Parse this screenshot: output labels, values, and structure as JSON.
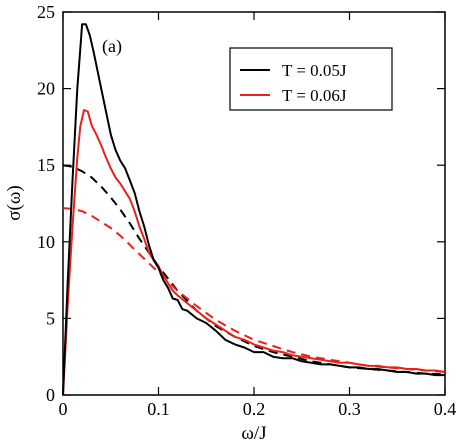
{
  "chart_data": {
    "type": "line",
    "annotation": "(a)",
    "xlabel": "ω/J",
    "ylabel": "σ(ω)",
    "xlim": [
      0,
      0.4
    ],
    "ylim": [
      0,
      25
    ],
    "x_ticks": [
      0,
      0.1,
      0.2,
      0.3,
      0.4
    ],
    "x_tick_labels": [
      "0",
      "0.1",
      "0.2",
      "0.3",
      "0.4"
    ],
    "y_ticks": [
      0,
      5,
      10,
      15,
      20,
      25
    ],
    "y_tick_labels": [
      "0",
      "5",
      "10",
      "15",
      "20",
      "25"
    ],
    "grid": false,
    "legend_position": "top-right",
    "series": [
      {
        "name": "T = 0.05J",
        "color": "#000000",
        "style": "solid",
        "points": [
          [
            0,
            0
          ],
          [
            0.005,
            7.5
          ],
          [
            0.01,
            14
          ],
          [
            0.015,
            20
          ],
          [
            0.018,
            22.5
          ],
          [
            0.02,
            24.2
          ],
          [
            0.024,
            24.2
          ],
          [
            0.028,
            23.5
          ],
          [
            0.032,
            22.4
          ],
          [
            0.036,
            21.2
          ],
          [
            0.04,
            20
          ],
          [
            0.045,
            18.5
          ],
          [
            0.05,
            17
          ],
          [
            0.055,
            16
          ],
          [
            0.06,
            15.3
          ],
          [
            0.065,
            14.8
          ],
          [
            0.07,
            14
          ],
          [
            0.075,
            13.2
          ],
          [
            0.08,
            12
          ],
          [
            0.085,
            11
          ],
          [
            0.09,
            9.8
          ],
          [
            0.095,
            8.8
          ],
          [
            0.1,
            8.3
          ],
          [
            0.105,
            7.5
          ],
          [
            0.11,
            7
          ],
          [
            0.115,
            6.3
          ],
          [
            0.12,
            6.2
          ],
          [
            0.125,
            5.6
          ],
          [
            0.13,
            5.5
          ],
          [
            0.14,
            5
          ],
          [
            0.15,
            4.7
          ],
          [
            0.16,
            4.2
          ],
          [
            0.17,
            3.6
          ],
          [
            0.18,
            3.3
          ],
          [
            0.19,
            3.1
          ],
          [
            0.2,
            2.8
          ],
          [
            0.21,
            2.8
          ],
          [
            0.22,
            2.5
          ],
          [
            0.23,
            2.4
          ],
          [
            0.24,
            2.4
          ],
          [
            0.25,
            2.2
          ],
          [
            0.26,
            2.1
          ],
          [
            0.27,
            2
          ],
          [
            0.28,
            2
          ],
          [
            0.29,
            1.9
          ],
          [
            0.3,
            1.8
          ],
          [
            0.31,
            1.8
          ],
          [
            0.32,
            1.7
          ],
          [
            0.33,
            1.7
          ],
          [
            0.34,
            1.6
          ],
          [
            0.35,
            1.5
          ],
          [
            0.36,
            1.5
          ],
          [
            0.37,
            1.4
          ],
          [
            0.38,
            1.4
          ],
          [
            0.39,
            1.3
          ],
          [
            0.4,
            1.3
          ]
        ]
      },
      {
        "name": "T = 0.06J",
        "color": "#e8211b",
        "style": "solid",
        "points": [
          [
            0,
            0
          ],
          [
            0.005,
            6
          ],
          [
            0.01,
            11
          ],
          [
            0.015,
            15.5
          ],
          [
            0.018,
            17.5
          ],
          [
            0.022,
            18.6
          ],
          [
            0.026,
            18.5
          ],
          [
            0.03,
            17.6
          ],
          [
            0.035,
            17
          ],
          [
            0.04,
            16.3
          ],
          [
            0.045,
            15.5
          ],
          [
            0.05,
            14.8
          ],
          [
            0.055,
            14.2
          ],
          [
            0.06,
            13.8
          ],
          [
            0.065,
            13.3
          ],
          [
            0.07,
            12.8
          ],
          [
            0.075,
            12
          ],
          [
            0.08,
            11
          ],
          [
            0.085,
            10.2
          ],
          [
            0.09,
            9.3
          ],
          [
            0.095,
            8.8
          ],
          [
            0.1,
            8.4
          ],
          [
            0.105,
            7.8
          ],
          [
            0.11,
            7.3
          ],
          [
            0.115,
            6.8
          ],
          [
            0.12,
            6.5
          ],
          [
            0.13,
            6
          ],
          [
            0.14,
            5.5
          ],
          [
            0.15,
            5
          ],
          [
            0.16,
            4.6
          ],
          [
            0.17,
            4.2
          ],
          [
            0.18,
            3.8
          ],
          [
            0.19,
            3.6
          ],
          [
            0.2,
            3.3
          ],
          [
            0.21,
            3.1
          ],
          [
            0.22,
            2.9
          ],
          [
            0.23,
            2.8
          ],
          [
            0.24,
            2.6
          ],
          [
            0.25,
            2.5
          ],
          [
            0.26,
            2.4
          ],
          [
            0.27,
            2.3
          ],
          [
            0.28,
            2.2
          ],
          [
            0.29,
            2.1
          ],
          [
            0.3,
            2.1
          ],
          [
            0.31,
            2
          ],
          [
            0.32,
            1.9
          ],
          [
            0.33,
            1.9
          ],
          [
            0.34,
            1.8
          ],
          [
            0.35,
            1.8
          ],
          [
            0.36,
            1.7
          ],
          [
            0.37,
            1.7
          ],
          [
            0.38,
            1.6
          ],
          [
            0.39,
            1.6
          ],
          [
            0.4,
            1.5
          ]
        ]
      },
      {
        "color": "#000000",
        "style": "dashed",
        "points": [
          [
            0,
            15
          ],
          [
            0.01,
            14.9
          ],
          [
            0.02,
            14.6
          ],
          [
            0.03,
            14.2
          ],
          [
            0.04,
            13.6
          ],
          [
            0.05,
            12.9
          ],
          [
            0.06,
            12.1
          ],
          [
            0.07,
            11.2
          ],
          [
            0.08,
            10.2
          ],
          [
            0.09,
            9.3
          ],
          [
            0.1,
            8.4
          ],
          [
            0.12,
            6.8
          ],
          [
            0.14,
            5.5
          ],
          [
            0.16,
            4.5
          ],
          [
            0.18,
            3.8
          ],
          [
            0.2,
            3.2
          ],
          [
            0.22,
            2.8
          ],
          [
            0.24,
            2.5
          ],
          [
            0.26,
            2.2
          ],
          [
            0.28,
            2
          ],
          [
            0.3,
            1.8
          ],
          [
            0.32,
            1.7
          ],
          [
            0.34,
            1.6
          ],
          [
            0.36,
            1.5
          ],
          [
            0.38,
            1.4
          ],
          [
            0.4,
            1.35
          ]
        ]
      },
      {
        "color": "#e8211b",
        "style": "dashed",
        "points": [
          [
            0,
            12.2
          ],
          [
            0.01,
            12.15
          ],
          [
            0.02,
            12
          ],
          [
            0.03,
            11.7
          ],
          [
            0.04,
            11.3
          ],
          [
            0.05,
            10.9
          ],
          [
            0.06,
            10.4
          ],
          [
            0.07,
            9.8
          ],
          [
            0.08,
            9.2
          ],
          [
            0.09,
            8.6
          ],
          [
            0.1,
            8
          ],
          [
            0.12,
            6.8
          ],
          [
            0.14,
            5.8
          ],
          [
            0.16,
            4.9
          ],
          [
            0.18,
            4.2
          ],
          [
            0.2,
            3.6
          ],
          [
            0.22,
            3.2
          ],
          [
            0.24,
            2.8
          ],
          [
            0.26,
            2.5
          ],
          [
            0.28,
            2.3
          ],
          [
            0.3,
            2.1
          ],
          [
            0.32,
            1.9
          ],
          [
            0.34,
            1.8
          ],
          [
            0.36,
            1.7
          ],
          [
            0.38,
            1.6
          ],
          [
            0.4,
            1.5
          ]
        ]
      }
    ]
  }
}
